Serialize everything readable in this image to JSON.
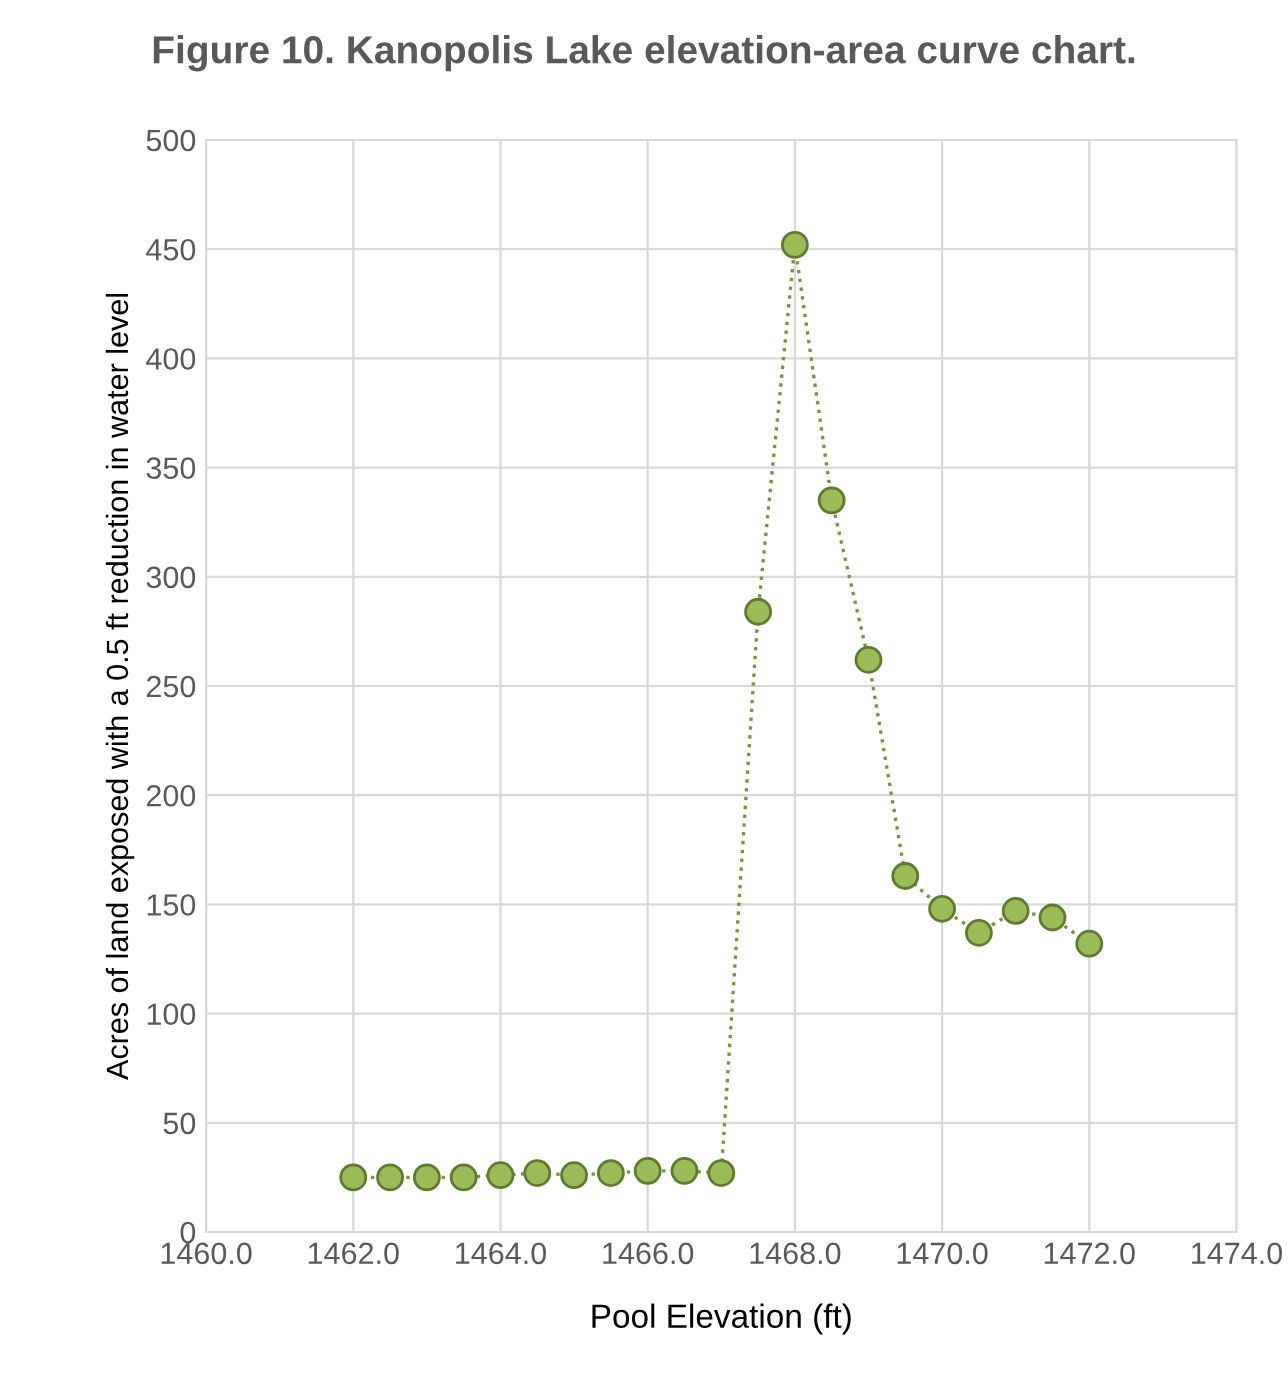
{
  "chart_data": {
    "type": "line",
    "title": "Figure 10. Kanopolis Lake elevation-area curve chart.",
    "xlabel": "Pool Elevation (ft)",
    "ylabel": "Acres of land exposed with a 0.5 ft reduction in water level",
    "x": [
      1462,
      1462.5,
      1463,
      1463.5,
      1464,
      1464.5,
      1465,
      1465.5,
      1466,
      1466.5,
      1467,
      1467.5,
      1468,
      1468.5,
      1469,
      1469.5,
      1470,
      1470.5,
      1471,
      1471.5,
      1472
    ],
    "series": [
      {
        "color": "#9bbb59",
        "values": [
          25,
          25,
          25,
          25,
          26,
          27,
          26,
          27,
          28,
          28,
          27,
          284,
          452,
          335,
          262,
          163,
          148,
          137,
          147,
          144,
          132
        ]
      }
    ],
    "xlim": [
      1460,
      1474
    ],
    "xticks": [
      {
        "value": 1460,
        "label": "1460.0"
      },
      {
        "value": 1462,
        "label": "1462.0"
      },
      {
        "value": 1464,
        "label": "1464.0"
      },
      {
        "value": 1466,
        "label": "1466.0"
      },
      {
        "value": 1468,
        "label": "1468.0"
      },
      {
        "value": 1470,
        "label": "1470.0"
      },
      {
        "value": 1472,
        "label": "1472.0"
      },
      {
        "value": 1474,
        "label": "1474.0"
      }
    ],
    "ylim": [
      0,
      500
    ],
    "yticks": [
      0,
      50,
      100,
      150,
      200,
      250,
      300,
      350,
      400,
      450,
      500
    ],
    "grid": true,
    "marker": "circle",
    "line_style": "dotted",
    "legend": false
  }
}
